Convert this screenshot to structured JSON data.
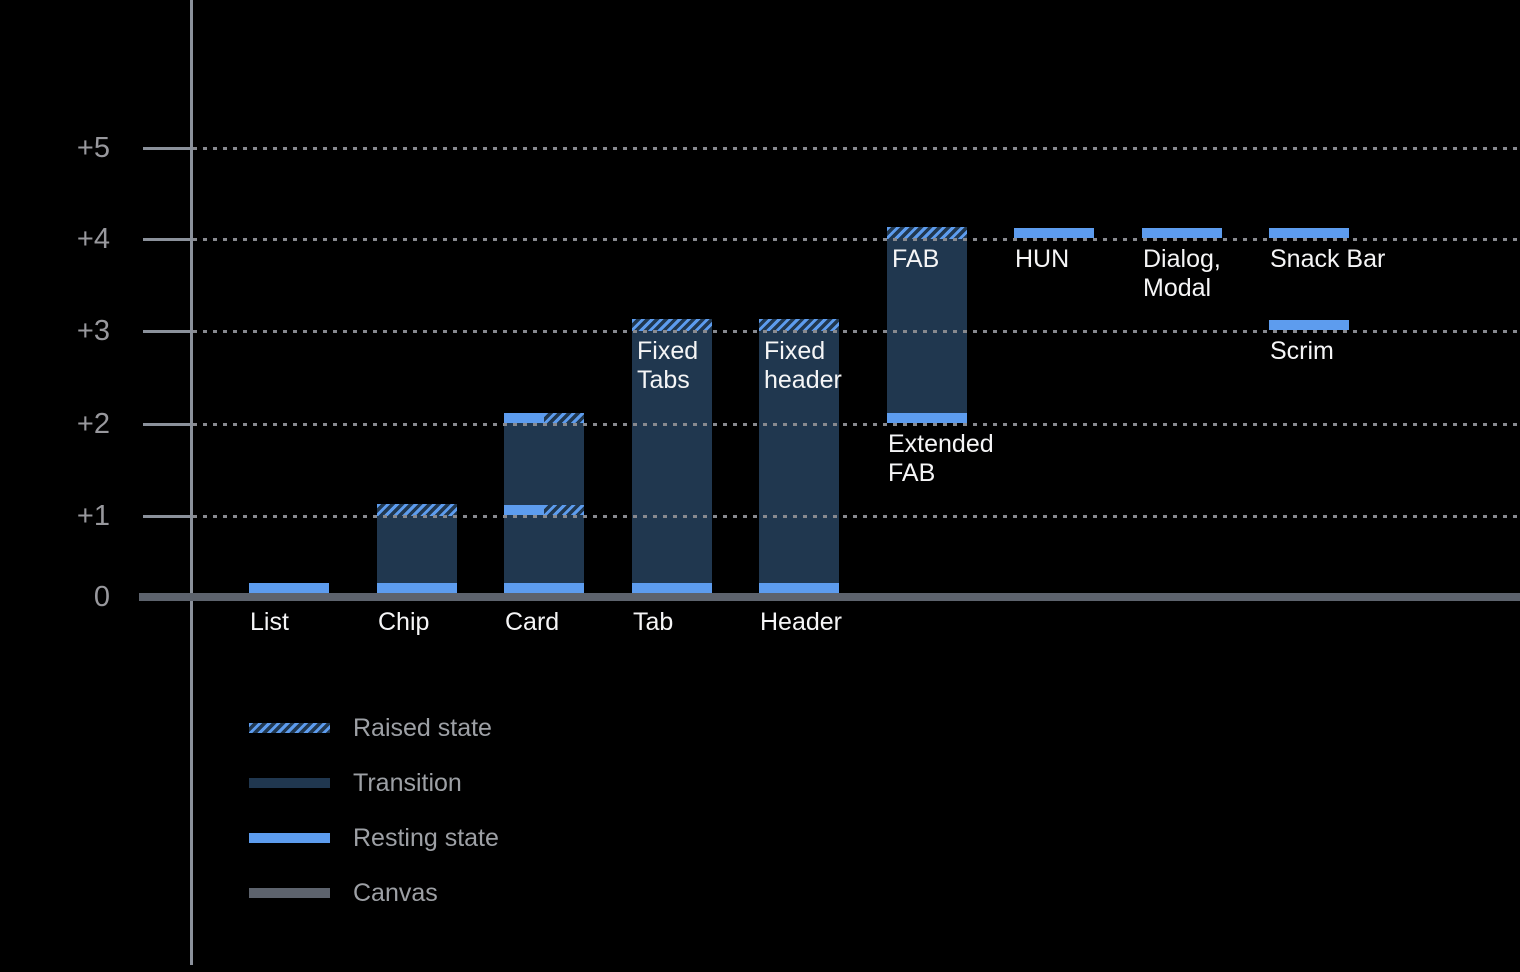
{
  "chart_data": {
    "type": "bar",
    "title": "",
    "description": "Material elevation diagram: component resting/raised elevation levels above the canvas",
    "y_axis": {
      "tick_labels": [
        "+5",
        "+4",
        "+3",
        "+2",
        "+1",
        "0"
      ],
      "levels": [
        5,
        4,
        3,
        2,
        1,
        0
      ],
      "range": [
        0,
        5
      ],
      "grid": "dotted horizontal lines at +1 through +5"
    },
    "bars": [
      {
        "key": "list",
        "col": 0,
        "axis_label": "List",
        "range": [
          0,
          0
        ],
        "resting": [
          0
        ]
      },
      {
        "key": "chip",
        "col": 1,
        "axis_label": "Chip",
        "range": [
          0,
          1
        ],
        "resting": [
          0
        ],
        "raised": [
          1
        ]
      },
      {
        "key": "card",
        "col": 2,
        "axis_label": "Card",
        "range": [
          0,
          2
        ],
        "resting": [
          0
        ],
        "split": [
          1,
          2
        ]
      },
      {
        "key": "tab",
        "col": 3,
        "axis_label": "Tab",
        "range": [
          0,
          3
        ],
        "resting": [
          0
        ],
        "raised": [
          3
        ],
        "inner_label": [
          "Fixed",
          "Tabs"
        ]
      },
      {
        "key": "header",
        "col": 4,
        "axis_label": "Header",
        "range": [
          0,
          3
        ],
        "resting": [
          0
        ],
        "raised": [
          3
        ],
        "inner_label": [
          "Fixed",
          "header"
        ]
      },
      {
        "key": "fab",
        "col": 5,
        "range": [
          2,
          4
        ],
        "resting": [
          2
        ],
        "raised": [
          4
        ],
        "inner_label": [
          "FAB"
        ],
        "below_bar_label": [
          "Extended",
          "FAB"
        ]
      },
      {
        "key": "hun",
        "col": 6,
        "range": [
          4,
          4
        ],
        "resting": [
          4
        ],
        "under_label": [
          "HUN"
        ]
      },
      {
        "key": "dialog-modal",
        "col": 7,
        "range": [
          4,
          4
        ],
        "resting": [
          4
        ],
        "under_label": [
          "Dialog,",
          "Modal"
        ]
      },
      {
        "key": "snack-bar",
        "col": 8,
        "range": [
          4,
          4
        ],
        "resting": [
          4
        ],
        "under_label": [
          "Snack Bar"
        ]
      },
      {
        "key": "scrim",
        "col": 8,
        "range": [
          3,
          3
        ],
        "resting": [
          3
        ],
        "under_label": [
          "Scrim"
        ]
      }
    ],
    "legend": {
      "position": "bottom-left",
      "items": [
        {
          "swatch": "raised",
          "label": "Raised state"
        },
        {
          "swatch": "transition",
          "label": "Transition"
        },
        {
          "swatch": "resting",
          "label": "Resting state"
        },
        {
          "swatch": "canvas",
          "label": "Canvas"
        }
      ]
    },
    "colors": {
      "background": "#000000",
      "resting": "#5d9cee",
      "transition": "#20374f",
      "canvas": "#5d636d",
      "axis": "#8b919b",
      "gridline": "#87898f",
      "tick_label": "#98989d",
      "bar_label": "#f5f5f6",
      "legend_label": "#9da0a5"
    }
  }
}
